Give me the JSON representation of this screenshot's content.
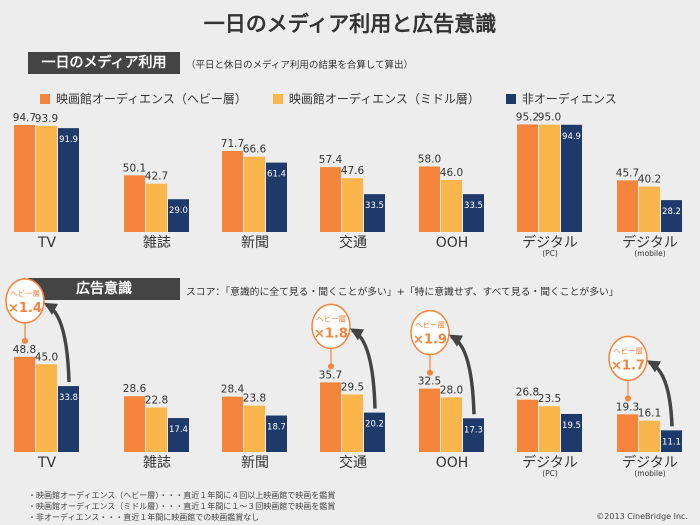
{
  "title": "一日のメディア利用と広告意識",
  "section1": {
    "label": "一日のメディア利用",
    "note": "（平日と休日のメディア利用の結果を合算して算出）"
  },
  "section2": {
    "label": "広告意識",
    "note": "スコア：「意識的に全て見る・聞くことが多い」+「特に意識せず、すべて見る・聞くことが多い」"
  },
  "legend": [
    {
      "label": "映画館オーディエンス（ヘビー層）",
      "color": "#f5843c"
    },
    {
      "label": "映画館オーディエンス（ミドル層）",
      "color": "#fbb64b"
    },
    {
      "label": "非オーディエンス",
      "color": "#1d3a6b"
    }
  ],
  "footnotes": [
    "・映画館オーディエンス（ヘビー層）・・・直近１年間に４回以上映画館で映画を鑑賞",
    "・映画館オーディエンス（ミドル層）・・・直近１年間に１〜３回映画館で映画を鑑賞",
    "・非オーディエンス・・・直近１年間に映画館での映画鑑賞なし"
  ],
  "copyright": "©2013 CineBridge Inc.",
  "chart_data": [
    {
      "type": "bar",
      "categories": [
        "TV",
        "雑誌",
        "新聞",
        "交通",
        "OOH",
        "デジタル",
        "デジタル"
      ],
      "sublabels": [
        "",
        "",
        "",
        "",
        "",
        "(PC)",
        "(mobile)"
      ],
      "series": [
        {
          "name": "映画館オーディエンス（ヘビー層）",
          "values": [
            94.7,
            50.1,
            71.7,
            57.4,
            58.0,
            95.2,
            45.7
          ]
        },
        {
          "name": "映画館オーディエンス（ミドル層）",
          "values": [
            93.9,
            42.7,
            66.6,
            47.6,
            46.0,
            95.0,
            40.2
          ]
        },
        {
          "name": "非オーディエンス",
          "values": [
            91.9,
            29.0,
            61.4,
            33.5,
            33.5,
            94.9,
            28.2
          ]
        }
      ]
    },
    {
      "type": "bar",
      "categories": [
        "TV",
        "雑誌",
        "新聞",
        "交通",
        "OOH",
        "デジタル",
        "デジタル"
      ],
      "sublabels": [
        "",
        "",
        "",
        "",
        "",
        "(PC)",
        "(mobile)"
      ],
      "series": [
        {
          "name": "映画館オーディエンス（ヘビー層）",
          "values": [
            48.8,
            28.6,
            28.4,
            35.7,
            32.5,
            26.8,
            19.3
          ]
        },
        {
          "name": "映画館オーディエンス（ミドル層）",
          "values": [
            45.0,
            22.8,
            23.8,
            29.5,
            28.0,
            23.5,
            16.1
          ]
        },
        {
          "name": "非オーディエンス",
          "values": [
            33.8,
            17.4,
            18.7,
            20.2,
            17.3,
            19.5,
            11.1
          ]
        }
      ],
      "callouts": [
        {
          "index": 0,
          "label": "ヘビー層",
          "value": "×1.4"
        },
        {
          "index": 3,
          "label": "ヘビー層",
          "value": "×1.8"
        },
        {
          "index": 4,
          "label": "ヘビー層",
          "value": "×1.9"
        },
        {
          "index": 6,
          "label": "ヘビー層",
          "value": "×1.7"
        }
      ]
    }
  ]
}
